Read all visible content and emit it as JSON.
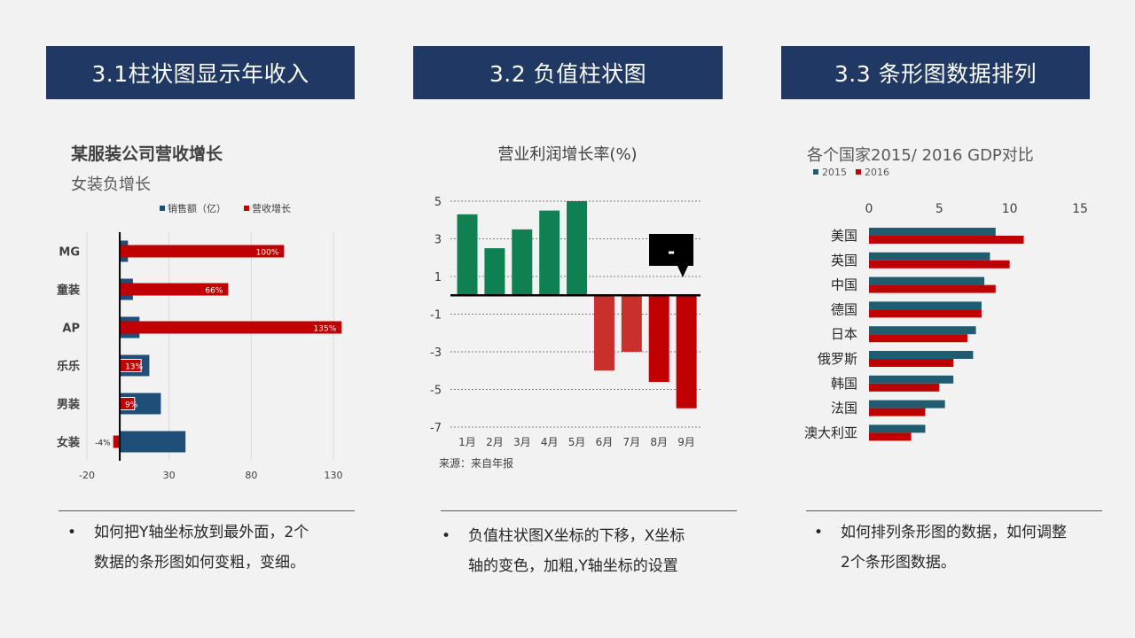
{
  "banners": [
    "3.1柱状图显示年收入",
    "3.2 负值柱状图",
    "3.3 条形图数据排列"
  ],
  "chart_data": [
    {
      "type": "bar",
      "orientation": "horizontal",
      "title": "某服装公司营收增长",
      "subtitle": "女装负增长",
      "categories": [
        "MG",
        "童装",
        "AP",
        "乐乐",
        "男装",
        "女装"
      ],
      "series": [
        {
          "name": "销售额（亿）",
          "color": "#1f4e79",
          "values": [
            5,
            8,
            12,
            18,
            25,
            40
          ]
        },
        {
          "name": "营收增长",
          "color": "#c00000",
          "values": [
            100,
            66,
            135,
            13,
            9,
            -4
          ]
        }
      ],
      "data_labels": [
        "100%",
        "66%",
        "135%",
        "13%",
        "9%",
        "-4%"
      ],
      "xticks": [
        "-20",
        "30",
        "80",
        "130"
      ],
      "xlim": [
        -20,
        130
      ],
      "legend": "top"
    },
    {
      "type": "bar",
      "title": "营业利润增长率(%)",
      "categories": [
        "1月",
        "2月",
        "3月",
        "4月",
        "5月",
        "6月",
        "7月",
        "8月",
        "9月"
      ],
      "values": [
        4.3,
        2.5,
        3.5,
        4.5,
        5.0,
        -4.0,
        -3.0,
        -4.6,
        -6.0
      ],
      "yticks": [
        "5",
        "3",
        "1",
        "-1",
        "-3",
        "-5",
        "-7"
      ],
      "ylim": [
        -7,
        5
      ],
      "positive_color": "#0e8051",
      "negative_color": "#c00000",
      "callout": "-",
      "source": "来源：来自年报",
      "grid": true
    },
    {
      "type": "bar",
      "orientation": "horizontal",
      "title": "各个国家2015/ 2016  GDP对比",
      "categories": [
        "美国",
        "英国",
        "中国",
        "德国",
        "日本",
        "俄罗斯",
        "韩国",
        "法国",
        "澳大利亚"
      ],
      "series": [
        {
          "name": "2015",
          "color": "#1f5c70",
          "values": [
            9.0,
            8.6,
            8.2,
            8.0,
            7.6,
            7.4,
            6.0,
            5.4,
            4.0
          ]
        },
        {
          "name": "2016",
          "color": "#c00000",
          "values": [
            11.0,
            10.0,
            9.0,
            8.0,
            7.0,
            6.0,
            5.0,
            4.0,
            3.0
          ]
        }
      ],
      "xticks": [
        "0",
        "5",
        "10",
        "15"
      ],
      "xlim": [
        0,
        15
      ],
      "legend": "top-left"
    }
  ],
  "notes": [
    {
      "bullet": "•",
      "lines": [
        "如何把Y轴坐标放到最外面，2个",
        "数据的条形图如何变粗，变细。"
      ]
    },
    {
      "bullet": "•",
      "lines": [
        "负值柱状图X坐标的下移，X坐标",
        "轴的变色，加粗,Y轴坐标的设置"
      ]
    },
    {
      "bullet": "•",
      "lines": [
        "如何排列条形图的数据，如何调整",
        "2个条形图数据。"
      ]
    }
  ]
}
